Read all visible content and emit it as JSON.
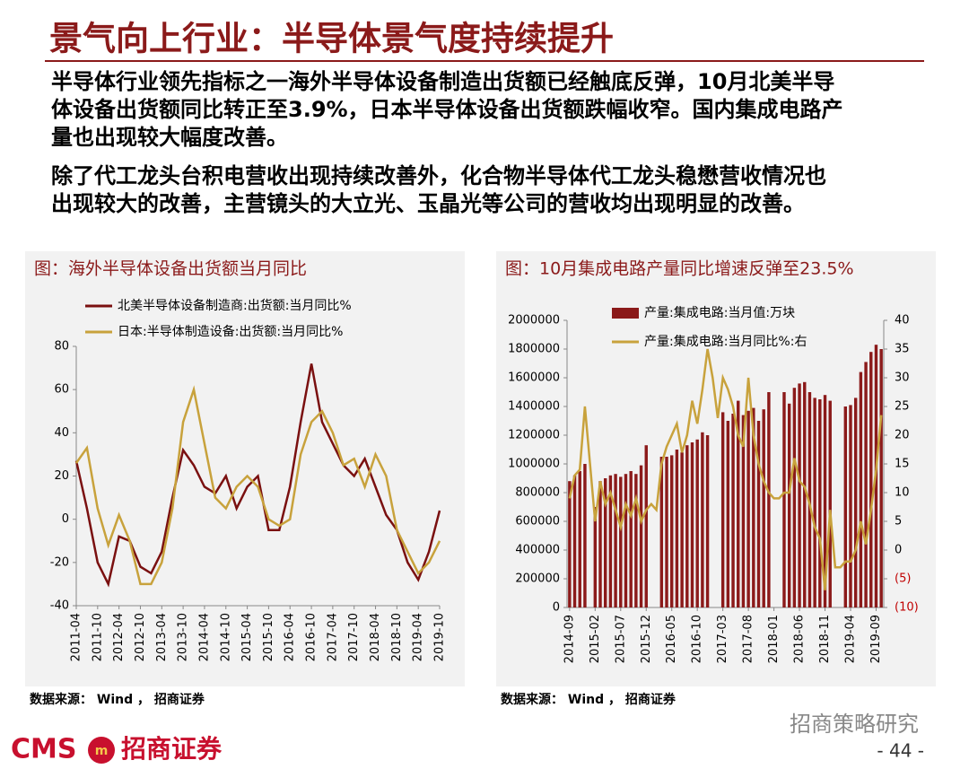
{
  "header": {
    "title": "景气向上行业：半导体景气度持续提升"
  },
  "paragraphs": [
    [
      "半导体行业领先指标之一海外半导体设备制造出货额已经触底反弹，10月北美半导",
      "体设备出货额同比转正至3.9%，日本半导体设备出货额跌幅收窄。国内集成电路产",
      "量也出现较大幅度改善。"
    ],
    [
      "除了代工龙头台积电营收出现持续改善外，化合物半导体代工龙头稳懋营收情况也",
      "出现较大的改善，主营镜头的大立光、玉晶光等公司的营收均出现明显的改善。"
    ]
  ],
  "chart_data": [
    {
      "type": "line",
      "title": "图：海外半导体设备出货额当月同比",
      "source": "数据来源： Wind ， 招商证券",
      "categories": [
        "2011-04",
        null,
        "2011-10",
        null,
        "2012-04",
        null,
        "2012-10",
        null,
        "2013-04",
        null,
        "2013-10",
        null,
        "2014-04",
        null,
        "2014-10",
        null,
        "2015-04",
        null,
        "2015-10",
        null,
        "2016-04",
        null,
        "2016-10",
        null,
        "2017-04",
        null,
        "2017-10",
        null,
        "2018-04",
        null,
        "2018-10",
        null,
        "2019-04",
        null,
        "2019-10"
      ],
      "series": [
        {
          "name": "北美半导体设备制造商:出货额:当月同比%",
          "color": "#7a1010",
          "values": [
            27,
            5,
            -20,
            -30,
            -8,
            -10,
            -22,
            -25,
            -15,
            10,
            32,
            25,
            15,
            12,
            20,
            5,
            15,
            20,
            -5,
            -5,
            15,
            45,
            72,
            45,
            35,
            25,
            20,
            28,
            15,
            2,
            -5,
            -20,
            -28,
            -15,
            4
          ]
        },
        {
          "name": "日本:半导体制造设备:出货额:当月同比%",
          "color": "#c8a23c",
          "values": [
            26,
            33,
            5,
            -12,
            2,
            -10,
            -30,
            -30,
            -20,
            5,
            45,
            60,
            35,
            10,
            5,
            15,
            20,
            15,
            0,
            -3,
            0,
            30,
            45,
            50,
            40,
            25,
            28,
            15,
            30,
            20,
            -5,
            -15,
            -25,
            -20,
            -10
          ]
        }
      ],
      "ylim": [
        -40,
        80
      ],
      "yticks": [
        -40,
        -20,
        0,
        20,
        40,
        60,
        80
      ]
    },
    {
      "type": "combo",
      "title": "图：10月集成电路产量同比增速反弹至23.5%",
      "source": "数据来源： Wind ， 招商证券",
      "categories": [
        "2014-09",
        null,
        null,
        null,
        null,
        "2015-02",
        null,
        null,
        null,
        null,
        "2015-07",
        null,
        null,
        null,
        null,
        "2015-12",
        null,
        null,
        null,
        null,
        "2016-05",
        null,
        null,
        null,
        null,
        "2016-10",
        null,
        null,
        null,
        null,
        "2017-03",
        null,
        null,
        null,
        null,
        "2017-08",
        null,
        null,
        null,
        null,
        "2018-01",
        null,
        null,
        null,
        null,
        "2018-06",
        null,
        null,
        null,
        null,
        "2018-11",
        null,
        null,
        null,
        null,
        "2019-04",
        null,
        null,
        null,
        null,
        "2019-09",
        null
      ],
      "series": [
        {
          "name": "产量:集成电路:当月值:万块",
          "type": "bar",
          "color": "#8b1a1a",
          "values": [
            880000,
            920000,
            950000,
            1000000,
            null,
            700000,
            880000,
            900000,
            920000,
            930000,
            910000,
            930000,
            950000,
            930000,
            990000,
            1130000,
            null,
            null,
            1050000,
            1050000,
            1060000,
            1100000,
            1080000,
            1130000,
            1150000,
            1170000,
            1220000,
            1200000,
            null,
            null,
            1360000,
            1300000,
            1350000,
            1440000,
            1340000,
            1370000,
            1390000,
            1300000,
            1380000,
            1500000,
            null,
            null,
            1500000,
            1420000,
            1530000,
            1560000,
            1570000,
            1500000,
            1460000,
            1450000,
            1480000,
            1440000,
            null,
            null,
            1400000,
            1410000,
            1460000,
            1640000,
            1710000,
            1780000,
            1830000,
            1800000
          ]
        },
        {
          "name": "产量:集成电路:当月同比%:右",
          "type": "line",
          "axis": "y2",
          "color": "#c8a23c",
          "values": [
            9,
            13,
            14,
            25,
            15,
            5,
            12,
            8,
            10,
            7,
            4,
            8,
            6,
            9,
            5,
            7,
            8,
            7,
            15,
            18,
            20,
            22,
            17,
            20,
            26,
            22,
            28,
            35,
            30,
            23,
            30,
            28,
            25,
            20,
            18,
            30,
            20,
            15,
            12,
            10,
            9,
            9,
            10,
            10,
            16,
            12,
            11,
            8,
            4,
            2,
            -7,
            7,
            -3,
            -3,
            -2,
            -2,
            0,
            5,
            1,
            7,
            14,
            23.5
          ]
        }
      ],
      "ylim": [
        0,
        2000000
      ],
      "yticks": [
        0,
        200000,
        400000,
        600000,
        800000,
        1000000,
        1200000,
        1400000,
        1600000,
        1800000,
        2000000
      ],
      "y2lim": [
        -10,
        40
      ],
      "y2ticks": [
        {
          "value": -10,
          "label": "(10)"
        },
        {
          "value": -5,
          "label": "(5)"
        },
        0,
        5,
        10,
        15,
        20,
        25,
        30,
        35,
        40
      ],
      "y2_negative_color": "#c00000"
    }
  ],
  "footer": {
    "brand": "CMS",
    "company": "招商证券",
    "watermark": "招商策略研究",
    "page": "- 44 -"
  }
}
